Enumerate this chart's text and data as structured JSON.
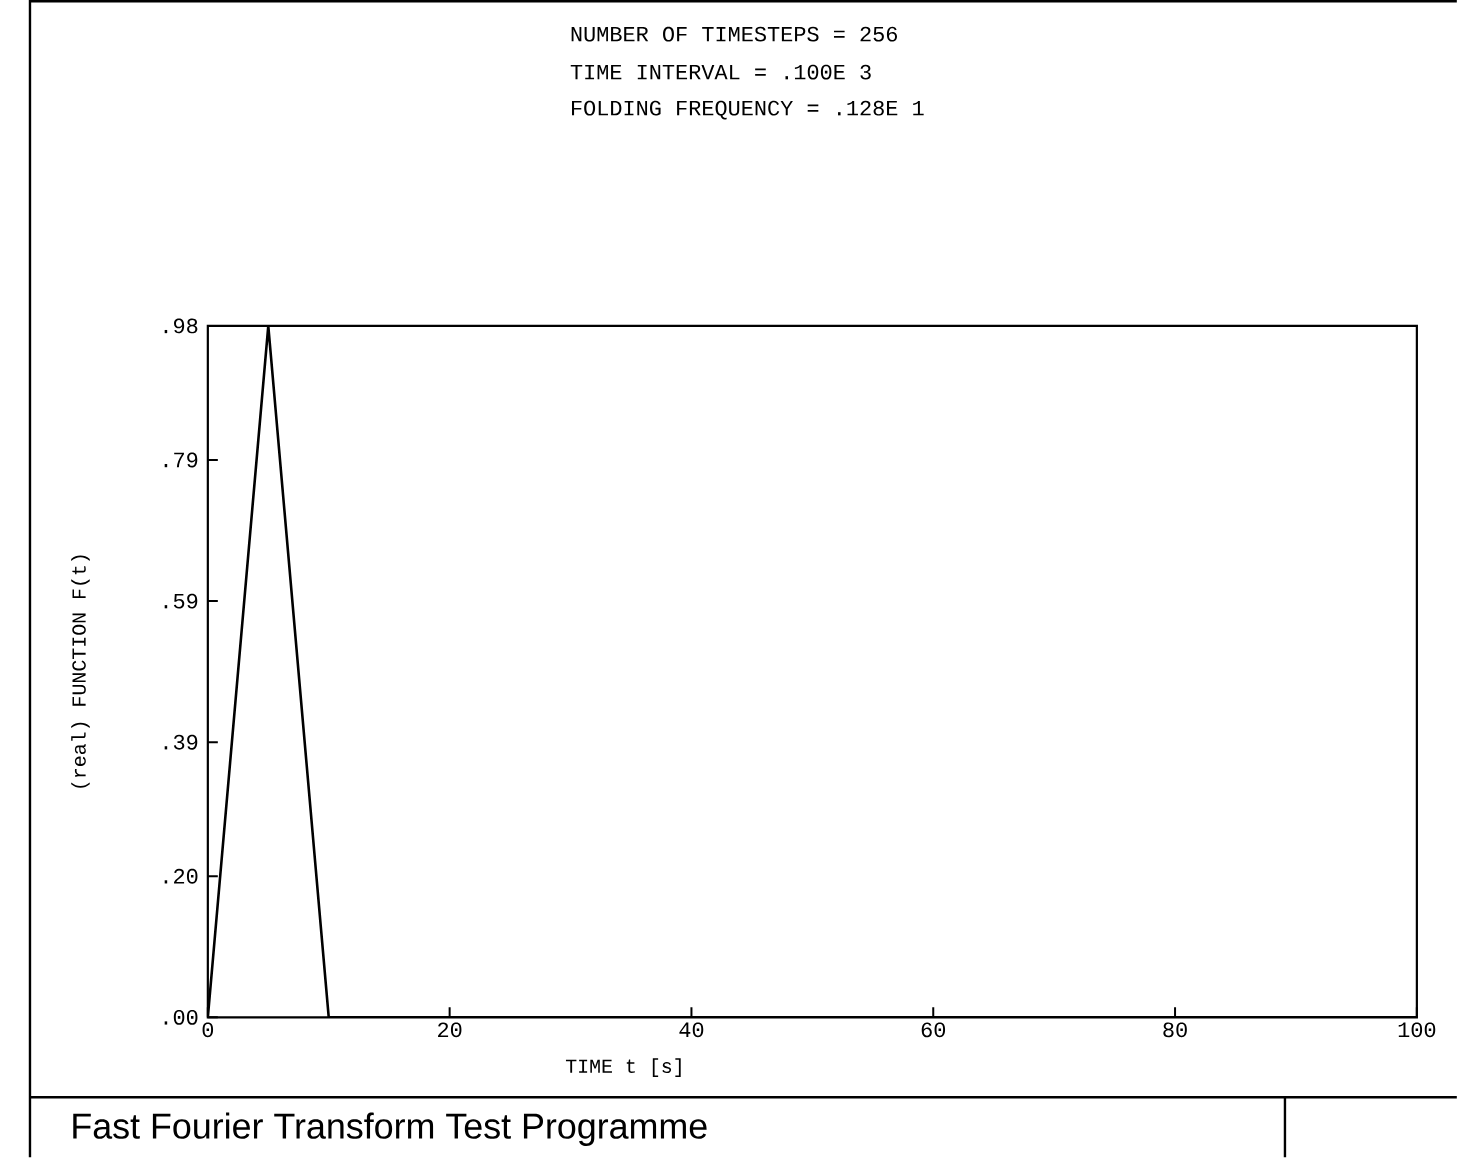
{
  "chart_data": {
    "type": "line",
    "title": "Fast Fourier Transform Test Programme",
    "xlabel": "TIME t [s]",
    "ylabel": "(real) FUNCTION F(t)",
    "annotations": [
      "NUMBER OF TIMESTEPS = 256",
      "TIME INTERVAL = .100E 3",
      "FOLDING FREQUENCY = .128E 1"
    ],
    "x": [
      0,
      5,
      10,
      100
    ],
    "values": [
      0,
      0.98,
      0,
      0
    ],
    "color": "#000000",
    "xlim": [
      0,
      100
    ],
    "ylim": [
      0,
      0.98
    ],
    "xticks": [
      0,
      20,
      40,
      60,
      80,
      100
    ],
    "yticks": [
      {
        "value": 0,
        "label": ".00"
      },
      {
        "value": 0.2,
        "label": ".20"
      },
      {
        "value": 0.39,
        "label": ".39"
      },
      {
        "value": 0.59,
        "label": ".59"
      },
      {
        "value": 0.79,
        "label": ".79"
      },
      {
        "value": 0.98,
        "label": ".98"
      }
    ]
  }
}
